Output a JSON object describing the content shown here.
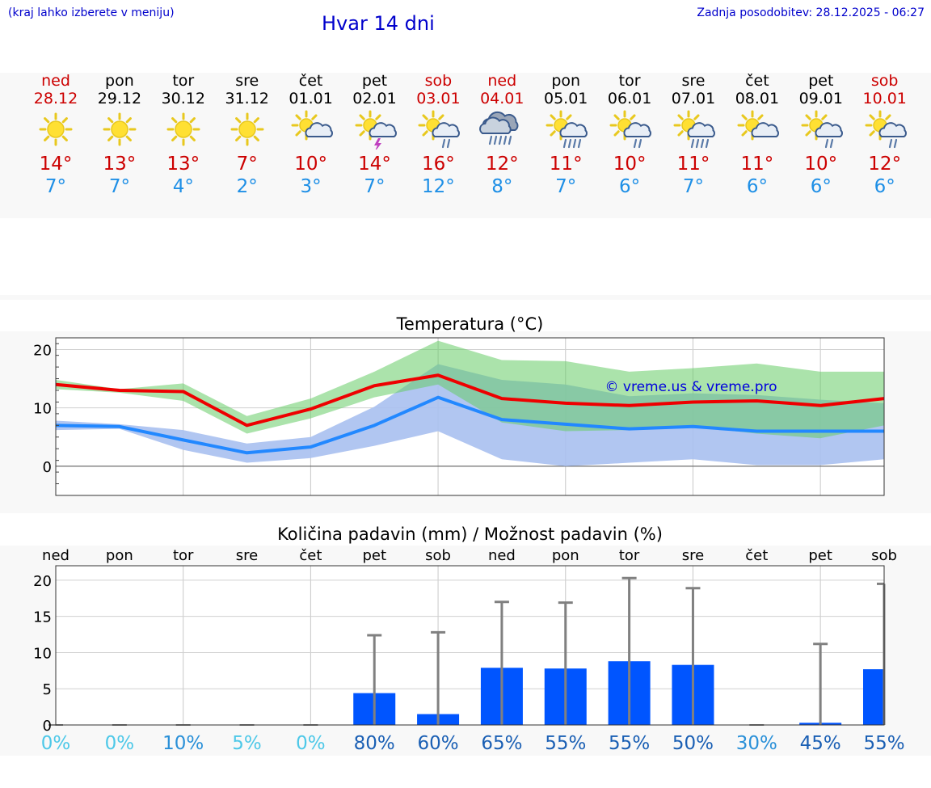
{
  "header": {
    "left_note": "(kraj lahko izberete v meniju)",
    "title": "Hvar 14 dni",
    "updated": "Zadnja posodobitev: 28.12.2025 - 06:27"
  },
  "days": [
    {
      "name": "ned",
      "date": "28.12",
      "weekend": true,
      "icon": "sun-icon",
      "hi": "14°",
      "lo": "7°"
    },
    {
      "name": "pon",
      "date": "29.12",
      "weekend": false,
      "icon": "sun-icon",
      "hi": "13°",
      "lo": "7°"
    },
    {
      "name": "tor",
      "date": "30.12",
      "weekend": false,
      "icon": "sun-icon",
      "hi": "13°",
      "lo": "4°"
    },
    {
      "name": "sre",
      "date": "31.12",
      "weekend": false,
      "icon": "sun-icon",
      "hi": "7°",
      "lo": "2°"
    },
    {
      "name": "čet",
      "date": "01.01",
      "weekend": false,
      "icon": "sun-cloud-icon",
      "hi": "10°",
      "lo": "3°"
    },
    {
      "name": "pet",
      "date": "02.01",
      "weekend": false,
      "icon": "sun-thunder-icon",
      "hi": "14°",
      "lo": "7°"
    },
    {
      "name": "sob",
      "date": "03.01",
      "weekend": true,
      "icon": "sun-cloud-rain-icon",
      "hi": "16°",
      "lo": "12°"
    },
    {
      "name": "ned",
      "date": "04.01",
      "weekend": true,
      "icon": "cloud-heavy-rain-icon",
      "hi": "12°",
      "lo": "8°"
    },
    {
      "name": "pon",
      "date": "05.01",
      "weekend": false,
      "icon": "sun-cloud-heavy-rain-icon",
      "hi": "11°",
      "lo": "7°"
    },
    {
      "name": "tor",
      "date": "06.01",
      "weekend": false,
      "icon": "sun-cloud-rain-icon",
      "hi": "10°",
      "lo": "6°"
    },
    {
      "name": "sre",
      "date": "07.01",
      "weekend": false,
      "icon": "sun-cloud-heavy-rain-icon",
      "hi": "11°",
      "lo": "7°"
    },
    {
      "name": "čet",
      "date": "08.01",
      "weekend": false,
      "icon": "sun-cloud-icon",
      "hi": "11°",
      "lo": "6°"
    },
    {
      "name": "pet",
      "date": "09.01",
      "weekend": false,
      "icon": "sun-cloud-rain-icon",
      "hi": "10°",
      "lo": "6°"
    },
    {
      "name": "sob",
      "date": "10.01",
      "weekend": true,
      "icon": "sun-cloud-rain-icon",
      "hi": "12°",
      "lo": "6°"
    }
  ],
  "colors": {
    "weekend": "#cc0000",
    "weekday": "#000000",
    "hi_line": "#ee0000",
    "lo_line": "#2288ff",
    "hi_band": "#a8e6a8",
    "lo_band": "#a8c0f0",
    "bar": "#0055ff",
    "errbar": "#808080",
    "pct_low": "#4dc8e8",
    "pct_high": "#1a5fb4"
  },
  "chart_data": [
    {
      "type": "line",
      "title": "Temperatura (°C)",
      "watermark": "© vreme.us & vreme.pro",
      "ylim": [
        -5,
        22
      ],
      "yticks": [
        0,
        10,
        20
      ],
      "x": [
        0,
        1,
        2,
        3,
        4,
        5,
        6,
        7,
        8,
        9,
        10,
        11,
        12,
        13
      ],
      "series": [
        {
          "name": "max",
          "values": [
            14.0,
            13.0,
            12.8,
            7.0,
            9.8,
            13.8,
            15.6,
            11.6,
            10.8,
            10.4,
            11.0,
            11.2,
            10.4,
            11.6
          ]
        },
        {
          "name": "min",
          "values": [
            7.0,
            6.8,
            4.5,
            2.3,
            3.3,
            7.0,
            11.8,
            8.0,
            7.2,
            6.4,
            6.8,
            6.0,
            6.0,
            6.0
          ]
        },
        {
          "name": "max_range",
          "upper": [
            14.8,
            13.2,
            14.2,
            8.6,
            11.6,
            16.2,
            21.5,
            18.2,
            18.0,
            16.2,
            16.8,
            17.6,
            16.2,
            16.2
          ],
          "lower": [
            13.2,
            12.6,
            11.2,
            5.6,
            8.2,
            11.8,
            14.0,
            7.5,
            6.0,
            6.2,
            6.8,
            5.6,
            4.8,
            7.0
          ]
        },
        {
          "name": "min_range",
          "upper": [
            7.8,
            7.2,
            6.2,
            3.9,
            5.0,
            10.2,
            17.5,
            14.8,
            14.0,
            12.0,
            12.5,
            12.2,
            11.4,
            10.8
          ],
          "lower": [
            6.2,
            6.4,
            2.8,
            0.6,
            1.4,
            3.5,
            6.0,
            1.2,
            0.0,
            0.6,
            1.2,
            0.2,
            0.2,
            1.2
          ]
        }
      ]
    },
    {
      "type": "bar",
      "title": "Količina padavin (mm) / Možnost padavin (%)",
      "ylim": [
        0,
        22
      ],
      "yticks": [
        0,
        5,
        10,
        15,
        20
      ],
      "categories": [
        "ned",
        "pon",
        "tor",
        "sre",
        "čet",
        "pet",
        "sob",
        "ned",
        "pon",
        "tor",
        "sre",
        "čet",
        "pet",
        "sob"
      ],
      "values": [
        0,
        0,
        0,
        0,
        0,
        4.4,
        1.5,
        7.9,
        7.8,
        8.8,
        8.3,
        0,
        0.3,
        7.7
      ],
      "max": [
        0,
        0,
        0,
        0,
        0,
        12.4,
        12.8,
        17.0,
        16.9,
        20.3,
        18.9,
        0,
        11.2,
        19.5
      ],
      "probability": [
        "0%",
        "0%",
        "10%",
        "5%",
        "0%",
        "80%",
        "60%",
        "65%",
        "55%",
        "55%",
        "50%",
        "30%",
        "45%",
        "55%"
      ]
    }
  ]
}
